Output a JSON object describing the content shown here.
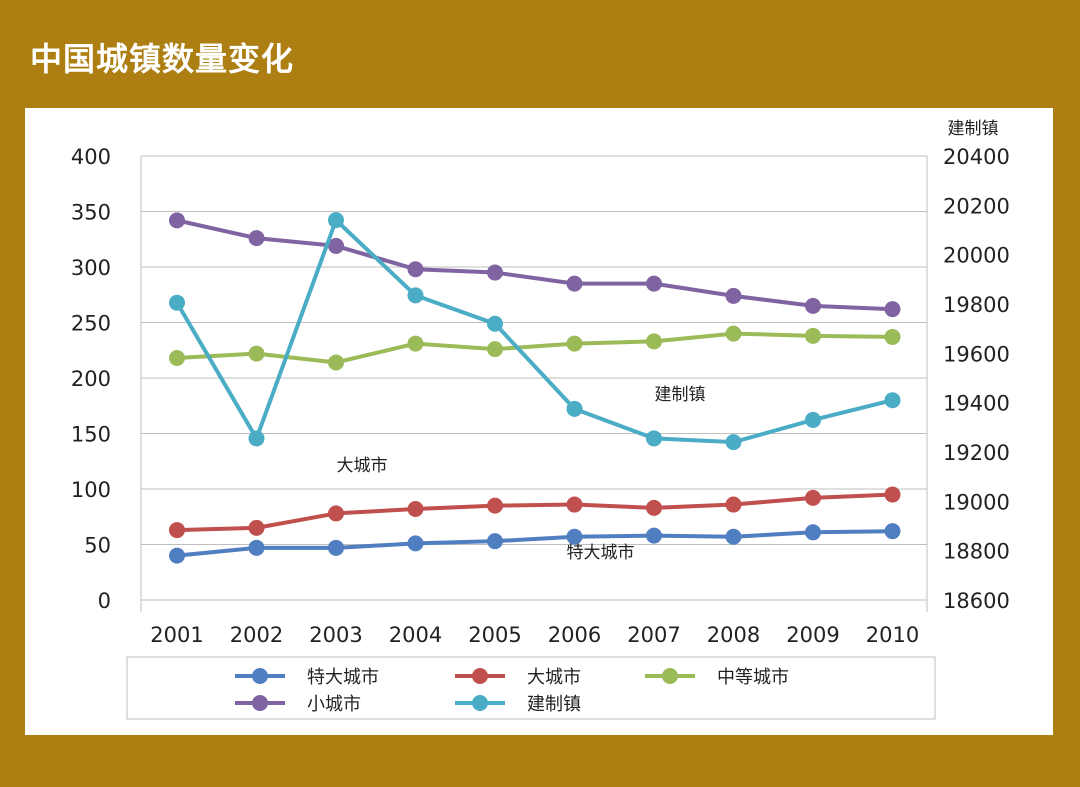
{
  "page": {
    "title": "中国城镇数量变化"
  },
  "colors": {
    "background": "#ad7f12",
    "panel": "#ffffff",
    "grid": "#bfbfbf"
  },
  "chart_data": {
    "type": "line",
    "title": "",
    "x": [
      "2001",
      "2002",
      "2003",
      "2004",
      "2005",
      "2006",
      "2007",
      "2008",
      "2009",
      "2010"
    ],
    "y_left": {
      "label": "",
      "min": 0,
      "max": 400,
      "ticks": [
        0,
        50,
        100,
        150,
        200,
        250,
        300,
        350,
        400
      ]
    },
    "y_right": {
      "label": "建制镇",
      "min": 18600,
      "max": 20400,
      "ticks": [
        18600,
        18800,
        19000,
        19200,
        19400,
        19600,
        19800,
        20000,
        20200,
        20400
      ]
    },
    "grid": true,
    "legend": "bottom",
    "series": [
      {
        "name": "特大城市",
        "axis": "left",
        "color": "#4f7fc0",
        "values": [
          40,
          47,
          47,
          51,
          53,
          57,
          58,
          57,
          61,
          62
        ]
      },
      {
        "name": "大城市",
        "axis": "left",
        "color": "#c0504d",
        "values": [
          63,
          65,
          78,
          82,
          85,
          86,
          83,
          86,
          92,
          95
        ]
      },
      {
        "name": "中等城市",
        "axis": "left",
        "color": "#9bbb59",
        "values": [
          218,
          222,
          214,
          231,
          226,
          231,
          233,
          240,
          238,
          237
        ]
      },
      {
        "name": "小城市",
        "axis": "left",
        "color": "#8064a2",
        "values": [
          342,
          326,
          319,
          298,
          295,
          285,
          285,
          274,
          265,
          262
        ]
      },
      {
        "name": "建制镇",
        "axis": "right",
        "color": "#4bacc6",
        "values": [
          19805,
          19255,
          20140,
          19835,
          19720,
          19375,
          19255,
          19240,
          19330,
          19410
        ]
      }
    ],
    "annotations": [
      {
        "text": "建制镇",
        "x": "2007",
        "y": 19410,
        "axis": "right"
      },
      {
        "text": "大城市",
        "x": "2003",
        "y": 116,
        "axis": "left"
      },
      {
        "text": "特大城市",
        "x": "2006",
        "y": 38,
        "axis": "left"
      }
    ]
  }
}
